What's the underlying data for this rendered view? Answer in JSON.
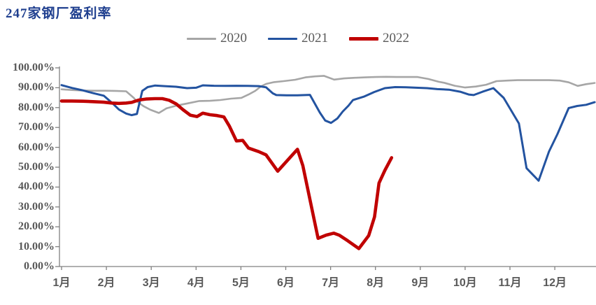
{
  "title": {
    "text": "247家钢厂盈利率",
    "color": "#1f3f8f"
  },
  "legend": [
    {
      "label": "2020",
      "color": "#a6a6a6",
      "thickness": 3
    },
    {
      "label": "2021",
      "color": "#2353a0",
      "thickness": 3
    },
    {
      "label": "2022",
      "color": "#c00000",
      "thickness": 5
    }
  ],
  "axes": {
    "line_color": "#808080",
    "label_color": "#595959"
  },
  "chart_data": {
    "type": "line",
    "title": "247家钢厂盈利率",
    "xlabel": "",
    "ylabel": "",
    "ylim": [
      0,
      100
    ],
    "grid": false,
    "legend_position": "top-center",
    "y_tick_labels": [
      "0.00%",
      "10.00%",
      "20.00%",
      "30.00%",
      "40.00%",
      "50.00%",
      "60.00%",
      "70.00%",
      "80.00%",
      "90.00%",
      "100.00%"
    ],
    "x_tick_labels": [
      "1月",
      "2月",
      "3月",
      "4月",
      "5月",
      "6月",
      "7月",
      "8月",
      "9月",
      "10月",
      "11月",
      "12月"
    ],
    "x_unit": "month (weekly samples)",
    "series": [
      {
        "name": "2020",
        "color": "#a6a6a6",
        "width": 2.6,
        "points": [
          [
            1.0,
            89.2
          ],
          [
            1.27,
            88.8
          ],
          [
            1.5,
            88.6
          ],
          [
            1.73,
            88.5
          ],
          [
            1.97,
            88.5
          ],
          [
            2.2,
            88.4
          ],
          [
            2.44,
            88.2
          ],
          [
            2.61,
            84.9
          ],
          [
            2.68,
            83.1
          ],
          [
            2.83,
            80.7
          ],
          [
            2.98,
            78.9
          ],
          [
            3.17,
            77.3
          ],
          [
            3.34,
            79.6
          ],
          [
            3.56,
            81.0
          ],
          [
            3.81,
            82.1
          ],
          [
            4.07,
            83.3
          ],
          [
            4.31,
            83.4
          ],
          [
            4.54,
            83.8
          ],
          [
            4.78,
            84.5
          ],
          [
            5.01,
            84.9
          ],
          [
            5.17,
            86.6
          ],
          [
            5.32,
            88.4
          ],
          [
            5.45,
            90.7
          ],
          [
            5.56,
            91.9
          ],
          [
            5.74,
            92.8
          ],
          [
            5.95,
            93.3
          ],
          [
            6.21,
            94.0
          ],
          [
            6.44,
            95.2
          ],
          [
            6.65,
            95.7
          ],
          [
            6.85,
            96.0
          ],
          [
            7.08,
            94.1
          ],
          [
            7.3,
            94.7
          ],
          [
            7.54,
            95.0
          ],
          [
            7.77,
            95.2
          ],
          [
            8.0,
            95.4
          ],
          [
            8.24,
            95.5
          ],
          [
            8.47,
            95.4
          ],
          [
            8.71,
            95.4
          ],
          [
            8.94,
            95.4
          ],
          [
            9.18,
            94.4
          ],
          [
            9.41,
            93.0
          ],
          [
            9.53,
            92.5
          ],
          [
            9.77,
            91.0
          ],
          [
            10.0,
            90.1
          ],
          [
            10.24,
            90.6
          ],
          [
            10.47,
            91.5
          ],
          [
            10.7,
            93.3
          ],
          [
            10.94,
            93.6
          ],
          [
            11.17,
            93.8
          ],
          [
            11.4,
            93.8
          ],
          [
            11.64,
            93.8
          ],
          [
            11.87,
            93.8
          ],
          [
            12.11,
            93.6
          ],
          [
            12.31,
            92.7
          ],
          [
            12.51,
            90.9
          ],
          [
            12.7,
            91.8
          ],
          [
            12.89,
            92.4
          ]
        ]
      },
      {
        "name": "2021",
        "color": "#2353a0",
        "width": 3,
        "points": [
          [
            1.0,
            91.3
          ],
          [
            1.23,
            89.9
          ],
          [
            1.47,
            88.7
          ],
          [
            1.7,
            87.3
          ],
          [
            1.94,
            86.0
          ],
          [
            2.12,
            82.5
          ],
          [
            2.28,
            79.0
          ],
          [
            2.44,
            77.0
          ],
          [
            2.56,
            76.2
          ],
          [
            2.68,
            76.8
          ],
          [
            2.8,
            88.4
          ],
          [
            2.92,
            90.3
          ],
          [
            3.08,
            91.1
          ],
          [
            3.3,
            90.8
          ],
          [
            3.55,
            90.5
          ],
          [
            3.8,
            89.8
          ],
          [
            4.0,
            90.0
          ],
          [
            4.15,
            91.2
          ],
          [
            4.4,
            91.0
          ],
          [
            4.65,
            90.9
          ],
          [
            4.9,
            91.0
          ],
          [
            5.15,
            90.9
          ],
          [
            5.4,
            90.8
          ],
          [
            5.56,
            90.2
          ],
          [
            5.71,
            87.2
          ],
          [
            5.79,
            86.3
          ],
          [
            6.02,
            86.2
          ],
          [
            6.26,
            86.2
          ],
          [
            6.54,
            86.4
          ],
          [
            6.76,
            77.5
          ],
          [
            6.88,
            73.5
          ],
          [
            7.01,
            72.3
          ],
          [
            7.15,
            74.5
          ],
          [
            7.27,
            78.0
          ],
          [
            7.4,
            81.0
          ],
          [
            7.5,
            83.8
          ],
          [
            7.74,
            85.5
          ],
          [
            7.97,
            87.8
          ],
          [
            8.21,
            89.8
          ],
          [
            8.44,
            90.3
          ],
          [
            8.68,
            90.2
          ],
          [
            8.91,
            90.0
          ],
          [
            9.15,
            89.8
          ],
          [
            9.38,
            89.3
          ],
          [
            9.64,
            89.0
          ],
          [
            9.89,
            88.0
          ],
          [
            10.08,
            86.6
          ],
          [
            10.19,
            86.3
          ],
          [
            10.39,
            88.0
          ],
          [
            10.63,
            89.8
          ],
          [
            10.86,
            84.9
          ],
          [
            11.2,
            72.0
          ],
          [
            11.37,
            49.5
          ],
          [
            11.64,
            43.2
          ],
          [
            11.87,
            57.9
          ],
          [
            12.06,
            66.7
          ],
          [
            12.31,
            79.8
          ],
          [
            12.5,
            80.8
          ],
          [
            12.7,
            81.4
          ],
          [
            12.89,
            82.7
          ]
        ]
      },
      {
        "name": "2022",
        "color": "#c00000",
        "width": 4.6,
        "points": [
          [
            1.0,
            83.3
          ],
          [
            1.23,
            83.3
          ],
          [
            1.47,
            83.2
          ],
          [
            1.7,
            83.0
          ],
          [
            1.94,
            82.7
          ],
          [
            2.12,
            82.3
          ],
          [
            2.28,
            82.1
          ],
          [
            2.44,
            82.3
          ],
          [
            2.56,
            82.6
          ],
          [
            2.72,
            83.8
          ],
          [
            2.88,
            84.3
          ],
          [
            3.08,
            84.5
          ],
          [
            3.25,
            84.5
          ],
          [
            3.4,
            83.7
          ],
          [
            3.56,
            81.8
          ],
          [
            3.71,
            78.9
          ],
          [
            3.87,
            76.2
          ],
          [
            4.02,
            75.5
          ],
          [
            4.15,
            77.2
          ],
          [
            4.31,
            76.4
          ],
          [
            4.47,
            76.0
          ],
          [
            4.62,
            75.3
          ],
          [
            4.74,
            70.8
          ],
          [
            4.9,
            63.2
          ],
          [
            5.04,
            63.5
          ],
          [
            5.17,
            59.6
          ],
          [
            5.4,
            57.8
          ],
          [
            5.56,
            56.2
          ],
          [
            5.82,
            48.0
          ],
          [
            6.26,
            59.0
          ],
          [
            6.38,
            50.8
          ],
          [
            6.72,
            14.2
          ],
          [
            6.9,
            15.8
          ],
          [
            7.07,
            16.8
          ],
          [
            7.19,
            15.8
          ],
          [
            7.38,
            13.0
          ],
          [
            7.63,
            9.0
          ],
          [
            7.85,
            15.6
          ],
          [
            7.98,
            25.0
          ],
          [
            8.08,
            42.0
          ],
          [
            8.21,
            48.4
          ],
          [
            8.36,
            54.8
          ]
        ]
      }
    ]
  }
}
